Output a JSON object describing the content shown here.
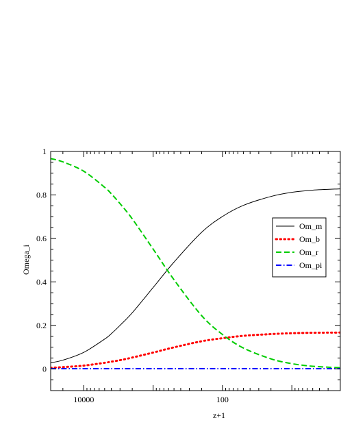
{
  "chart_data": {
    "type": "line",
    "xlabel": "z+1",
    "ylabel": "Omega_i",
    "x_scale": "log",
    "x_reversed": true,
    "xlim": [
      30000,
      2
    ],
    "ylim": [
      -0.1,
      1
    ],
    "x_ticks": [
      10000,
      100
    ],
    "y_ticks": [
      0,
      0.2,
      0.4,
      0.6,
      0.8,
      1
    ],
    "x_tick_labels": [
      "10000",
      "100"
    ],
    "y_tick_labels": [
      "0",
      "0.2",
      "0.4",
      "0.6",
      "0.8",
      "1"
    ],
    "grid": false,
    "legend_position": "center-right",
    "x": [
      30000,
      20000,
      10000,
      5000,
      4000,
      3000,
      2000,
      1000,
      500,
      200,
      100,
      50,
      20,
      10,
      5,
      2
    ],
    "series": [
      {
        "name": "Om_m",
        "color": "#000000",
        "dash": "solid",
        "values": [
          0.028,
          0.04,
          0.076,
          0.137,
          0.162,
          0.2,
          0.258,
          0.374,
          0.491,
          0.628,
          0.701,
          0.752,
          0.793,
          0.812,
          0.822,
          0.828
        ]
      },
      {
        "name": "Om_b",
        "color": "#ff0000",
        "dash": "dotted",
        "values": [
          0.005,
          0.008,
          0.015,
          0.028,
          0.033,
          0.04,
          0.052,
          0.075,
          0.099,
          0.127,
          0.141,
          0.152,
          0.16,
          0.164,
          0.166,
          0.167
        ]
      },
      {
        "name": "Om_r",
        "color": "#00cc00",
        "dash": "dashed",
        "values": [
          0.967,
          0.952,
          0.909,
          0.835,
          0.805,
          0.76,
          0.69,
          0.551,
          0.41,
          0.245,
          0.158,
          0.096,
          0.046,
          0.024,
          0.012,
          0.005
        ]
      },
      {
        "name": "Om_pi",
        "color": "#0000ff",
        "dash": "dashdot",
        "values": [
          0.001,
          0.001,
          0.001,
          0.001,
          0.001,
          0.001,
          0.001,
          0.001,
          0.001,
          0.001,
          0.001,
          0.001,
          0.001,
          0.001,
          0.001,
          0.001
        ]
      }
    ]
  }
}
